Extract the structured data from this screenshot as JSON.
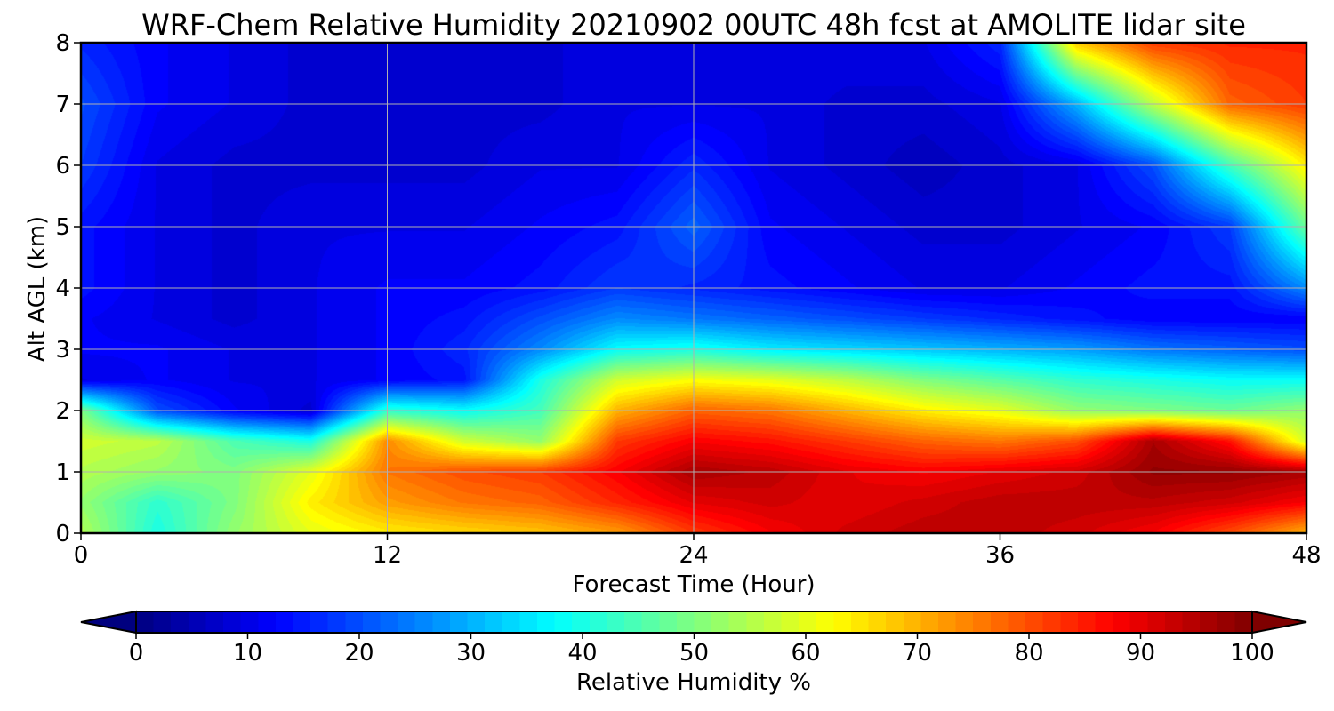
{
  "chart_data": {
    "type": "heatmap",
    "title": "WRF-Chem Relative Humidity 20210902 00UTC 48h fcst at AMOLITE lidar site",
    "xlabel": "Forecast Time (Hour)",
    "ylabel": "Alt AGL (km)",
    "x_ticks": [
      "0",
      "12",
      "24",
      "36",
      "48"
    ],
    "y_ticks": [
      "0",
      "1",
      "2",
      "3",
      "4",
      "5",
      "6",
      "7",
      "8"
    ],
    "xlim": [
      0,
      48
    ],
    "ylim": [
      0,
      8
    ],
    "grid": true,
    "colormap": "jet",
    "colorbar": {
      "label": "Relative Humidity %",
      "ticks": [
        "0",
        "10",
        "20",
        "30",
        "40",
        "50",
        "60",
        "70",
        "80",
        "90",
        "100"
      ],
      "range": [
        0,
        100
      ],
      "extend": "both",
      "orientation": "horizontal"
    },
    "x": [
      0,
      3,
      6,
      9,
      12,
      15,
      18,
      21,
      24,
      27,
      30,
      33,
      36,
      39,
      42,
      45,
      48
    ],
    "y": [
      0,
      0.5,
      1,
      1.5,
      2,
      2.5,
      3,
      3.5,
      4,
      5,
      6,
      7,
      8
    ],
    "z": [
      [
        55,
        40,
        52,
        60,
        64,
        66,
        68,
        72,
        82,
        88,
        92,
        94,
        94,
        92,
        88,
        80,
        70
      ],
      [
        52,
        42,
        50,
        64,
        72,
        76,
        78,
        84,
        90,
        92,
        90,
        92,
        94,
        94,
        94,
        92,
        88
      ],
      [
        55,
        52,
        50,
        60,
        76,
        80,
        82,
        88,
        96,
        94,
        90,
        88,
        90,
        92,
        98,
        98,
        96
      ],
      [
        58,
        56,
        45,
        40,
        74,
        58,
        52,
        82,
        88,
        86,
        82,
        78,
        76,
        80,
        96,
        86,
        58
      ],
      [
        50,
        20,
        12,
        8,
        42,
        38,
        44,
        70,
        78,
        76,
        70,
        64,
        60,
        52,
        50,
        48,
        52
      ],
      [
        10,
        12,
        10,
        10,
        12,
        14,
        40,
        58,
        62,
        60,
        56,
        50,
        46,
        42,
        40,
        38,
        38
      ],
      [
        12,
        12,
        10,
        10,
        12,
        16,
        26,
        38,
        40,
        36,
        34,
        32,
        30,
        28,
        24,
        22,
        20
      ],
      [
        12,
        10,
        8,
        10,
        12,
        14,
        20,
        26,
        24,
        22,
        20,
        18,
        16,
        14,
        12,
        12,
        12
      ],
      [
        14,
        10,
        8,
        10,
        12,
        12,
        14,
        18,
        16,
        14,
        12,
        10,
        10,
        12,
        14,
        14,
        26
      ],
      [
        14,
        10,
        8,
        10,
        10,
        10,
        12,
        14,
        22,
        12,
        10,
        8,
        8,
        10,
        12,
        18,
        48
      ],
      [
        18,
        10,
        8,
        8,
        8,
        8,
        10,
        10,
        16,
        10,
        8,
        6,
        8,
        10,
        20,
        44,
        64
      ],
      [
        20,
        12,
        10,
        8,
        8,
        8,
        8,
        10,
        10,
        10,
        8,
        8,
        10,
        30,
        56,
        78,
        82
      ],
      [
        16,
        12,
        10,
        8,
        8,
        8,
        8,
        10,
        10,
        10,
        10,
        10,
        16,
        68,
        82,
        84,
        84
      ]
    ]
  }
}
